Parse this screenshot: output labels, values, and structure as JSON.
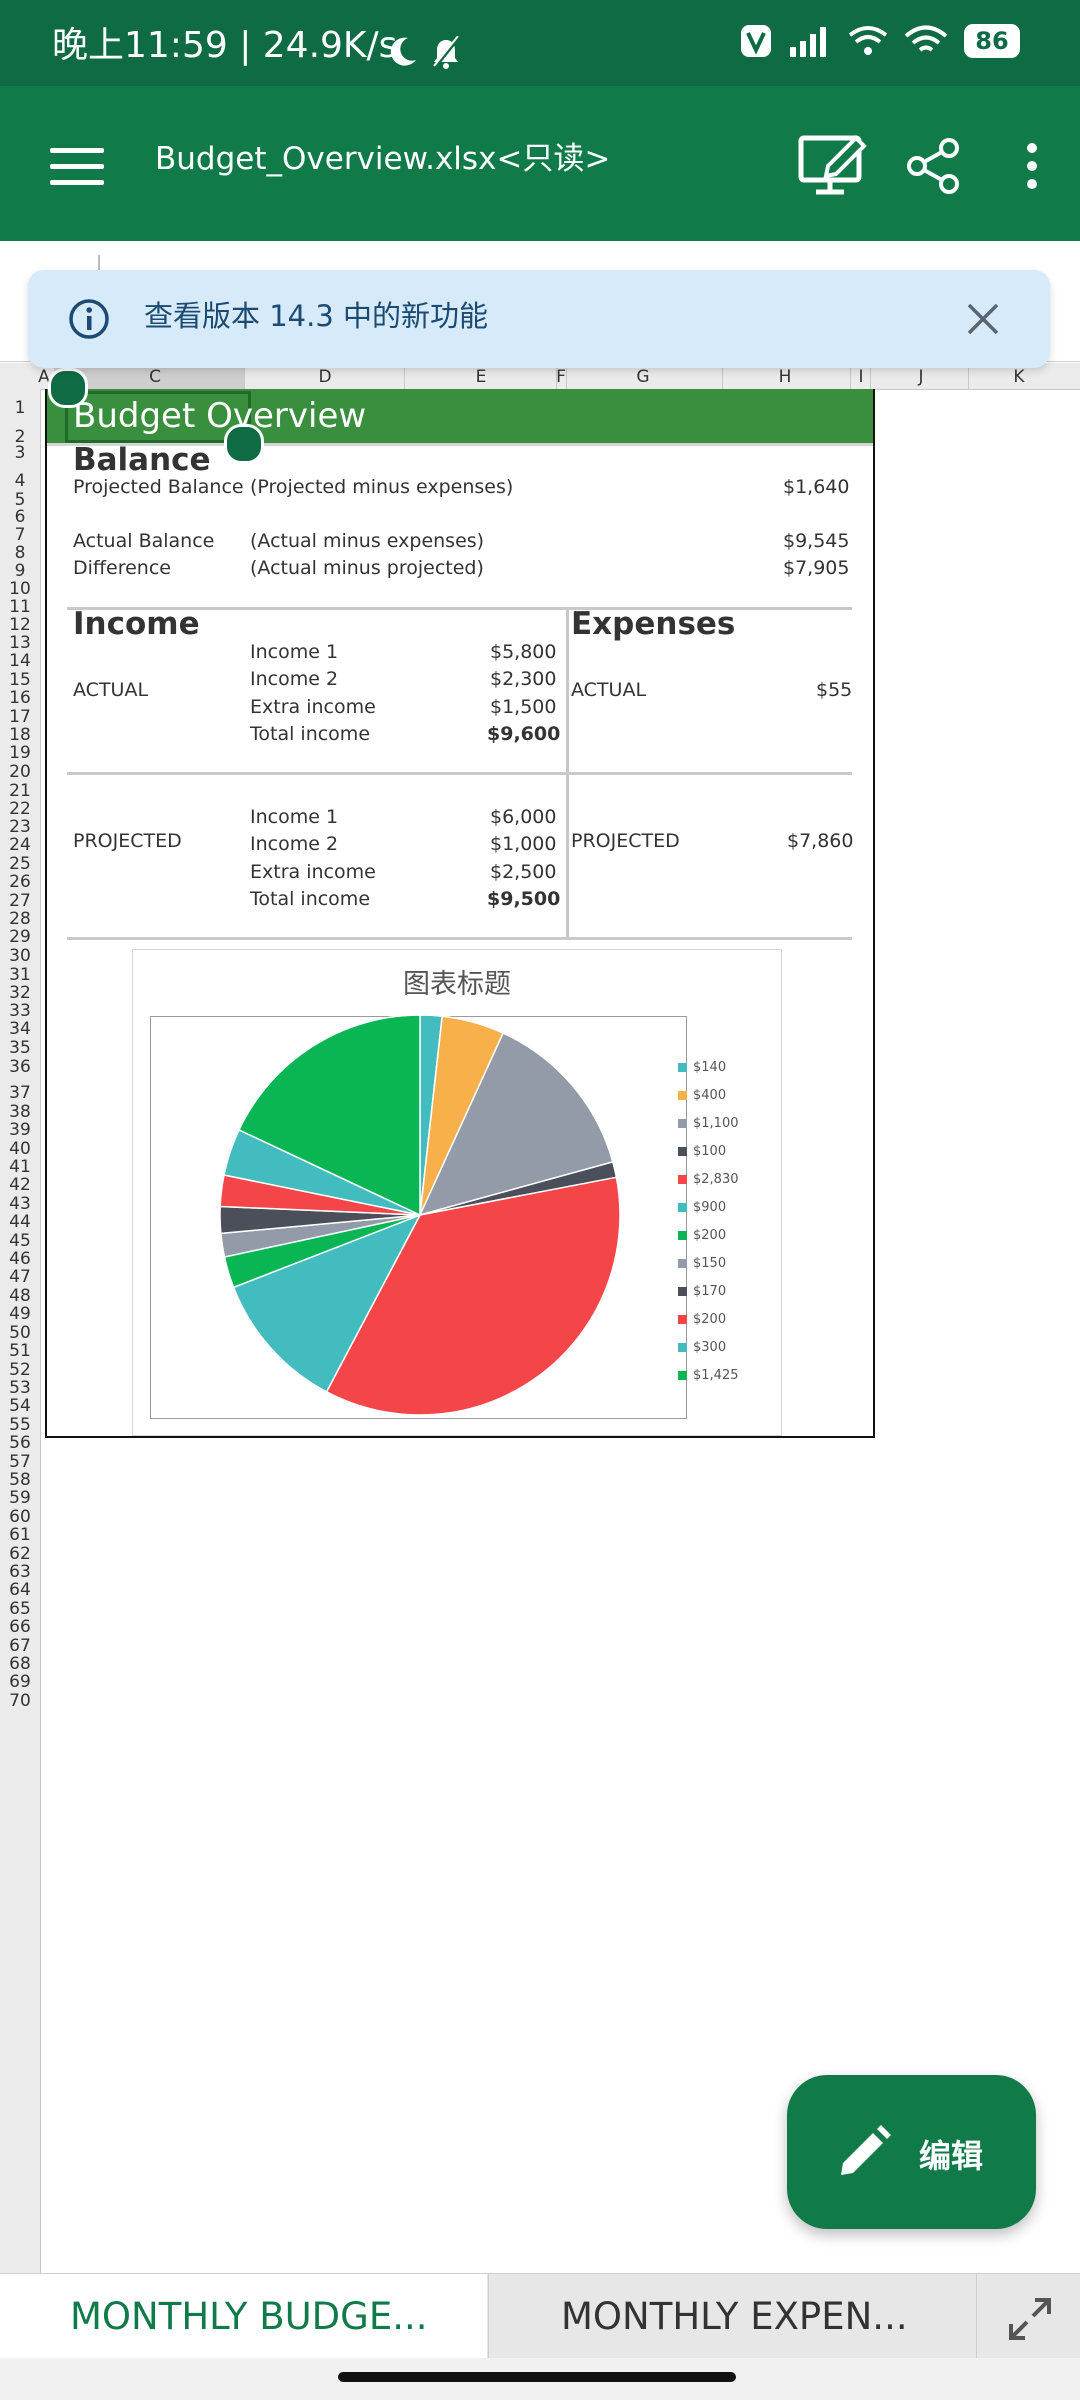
{
  "status_bar": {
    "time": "晚上11:59 | 24.9K/s",
    "battery": "86"
  },
  "toolbar": {
    "title": "Budget_Overview.xlsx<只读>"
  },
  "banner": {
    "text": "查看版本 14.3 中的新功能"
  },
  "column_headers": [
    "A",
    "C",
    "D",
    "E",
    "F",
    "G",
    "H",
    "I",
    "J",
    "K"
  ],
  "row_numbers": [
    "1",
    "2",
    "3",
    "4",
    "5",
    "6",
    "7",
    "8",
    "9",
    "10",
    "11",
    "12",
    "13",
    "14",
    "15",
    "16",
    "17",
    "18",
    "19",
    "20",
    "21",
    "22",
    "23",
    "24",
    "25",
    "26",
    "27",
    "28",
    "29",
    "30",
    "31",
    "32",
    "33",
    "34",
    "35",
    "36",
    "37",
    "38",
    "39",
    "40",
    "41",
    "42",
    "43",
    "44",
    "45",
    "46",
    "47",
    "48",
    "49",
    "50",
    "51",
    "52",
    "53",
    "54",
    "55",
    "56",
    "57",
    "58",
    "59",
    "60",
    "61",
    "62",
    "63",
    "64",
    "65",
    "66",
    "67",
    "68",
    "69",
    "70"
  ],
  "sheet": {
    "title": "Budget Overview",
    "balance": {
      "heading": "Balance",
      "rows": [
        {
          "label": "Projected Balance",
          "desc": "(Projected  minus expenses)",
          "value": "$1,640"
        },
        {
          "label": "Actual Balance",
          "desc": "(Actual  minus expenses)",
          "value": "$9,545"
        },
        {
          "label": "Difference",
          "desc": "(Actual minus projected)",
          "value": "$7,905"
        }
      ]
    },
    "income": {
      "heading": "Income",
      "actual": {
        "label": "ACTUAL",
        "rows": [
          {
            "name": "Income 1",
            "value": "$5,800"
          },
          {
            "name": "Income 2",
            "value": "$2,300"
          },
          {
            "name": "Extra income",
            "value": "$1,500"
          },
          {
            "name": "Total income",
            "value": "$9,600"
          }
        ]
      },
      "projected": {
        "label": "PROJECTED",
        "rows": [
          {
            "name": "Income 1",
            "value": "$6,000"
          },
          {
            "name": "Income 2",
            "value": "$1,000"
          },
          {
            "name": "Extra income",
            "value": "$2,500"
          },
          {
            "name": "Total income",
            "value": "$9,500"
          }
        ]
      }
    },
    "expenses": {
      "heading": "Expenses",
      "actual_label": "ACTUAL",
      "actual_value": "$55",
      "projected_label": "PROJECTED",
      "projected_value": "$7,860"
    }
  },
  "chart_data": {
    "type": "pie",
    "title": "图表标题",
    "categories": [
      "$140",
      "$400",
      "$1,100",
      "$100",
      "$2,830",
      "$900",
      "$200",
      "$150",
      "$170",
      "$200",
      "$300",
      "$1,425"
    ],
    "values": [
      140,
      400,
      1100,
      100,
      2830,
      900,
      200,
      150,
      170,
      200,
      300,
      1425
    ],
    "colors": [
      "#43bcc0",
      "#f8b04a",
      "#939ba9",
      "#4a4f5a",
      "#f44548",
      "#43bcc0",
      "#0ab554",
      "#939ba9",
      "#4a4f5a",
      "#f44548",
      "#43bcc0",
      "#0ab554"
    ],
    "legend_position": "right"
  },
  "tabs": [
    {
      "label": "MONTHLY BUDGE...",
      "active": true
    },
    {
      "label": "MONTHLY EXPEN...",
      "active": false
    }
  ],
  "fab": {
    "label": "编辑"
  },
  "colors": {
    "primary": "#117a49",
    "status": "#0f6b43",
    "sheet_green": "#3a8f3e",
    "banner": "#d7eaf9"
  }
}
